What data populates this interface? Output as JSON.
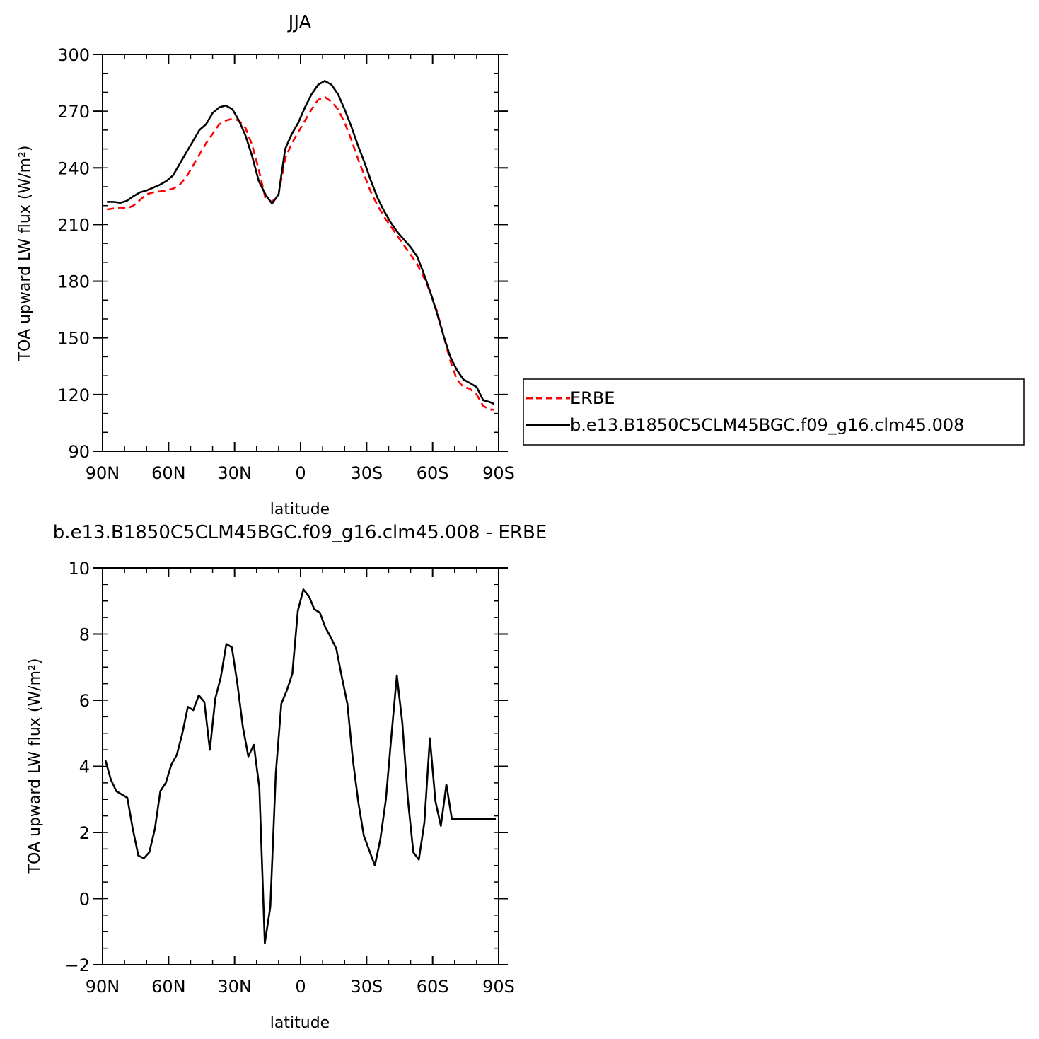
{
  "chart_data": [
    {
      "type": "line",
      "title": "JJA",
      "xlabel": "latitude",
      "ylabel": "TOA upward LW flux (W/m²)",
      "xlim": [
        -90,
        90
      ],
      "ylim": [
        90,
        300
      ],
      "x_ticks": [
        {
          "value": -90,
          "label": "90N"
        },
        {
          "value": -60,
          "label": "60N"
        },
        {
          "value": -30,
          "label": "30N"
        },
        {
          "value": 0,
          "label": "0"
        },
        {
          "value": 30,
          "label": "30S"
        },
        {
          "value": 60,
          "label": "60S"
        },
        {
          "value": 90,
          "label": "90S"
        }
      ],
      "y_ticks": [
        90,
        120,
        150,
        180,
        210,
        240,
        270,
        300
      ],
      "legend": "right",
      "series": [
        {
          "name": "ERBE",
          "color": "#ff0000",
          "dash": true,
          "x": [
            -88,
            -85,
            -82,
            -79,
            -76,
            -73,
            -70,
            -67,
            -64,
            -61,
            -58,
            -55,
            -52,
            -49,
            -46,
            -43,
            -40,
            -37,
            -34,
            -31,
            -28,
            -25,
            -22,
            -19,
            -16,
            -13,
            -10,
            -7,
            -4,
            -1,
            2,
            5,
            8,
            11,
            14,
            17,
            20,
            23,
            26,
            29,
            32,
            35,
            38,
            41,
            44,
            47,
            50,
            53,
            56,
            59,
            62,
            65,
            68,
            71,
            74,
            77,
            80,
            83,
            86,
            88
          ],
          "values": [
            218,
            218.5,
            219,
            218.5,
            220,
            223,
            226,
            227,
            227.5,
            228,
            229,
            231,
            235,
            241,
            247,
            253,
            258,
            263,
            265,
            266,
            265,
            261,
            252,
            239,
            224,
            222,
            226,
            245,
            253,
            259,
            265,
            271,
            276,
            277.5,
            275,
            271,
            264,
            255,
            245,
            236,
            227,
            220,
            214,
            209,
            204,
            199,
            194,
            189,
            182,
            174,
            164,
            151,
            138,
            128,
            124,
            123,
            120,
            114,
            112,
            112
          ],
          "x_note": ""
        },
        {
          "name": "b.e13.B1850C5CLM45BGC.f09_g16.clm45.008",
          "color": "#000000",
          "dash": false,
          "x": [
            -88,
            -85,
            -82,
            -79,
            -76,
            -73,
            -70,
            -67,
            -64,
            -61,
            -58,
            -55,
            -52,
            -49,
            -46,
            -43,
            -40,
            -37,
            -34,
            -31,
            -28,
            -25,
            -22,
            -19,
            -16,
            -13,
            -10,
            -7,
            -4,
            -1,
            2,
            5,
            8,
            11,
            14,
            17,
            20,
            23,
            26,
            29,
            32,
            35,
            38,
            41,
            44,
            47,
            50,
            53,
            56,
            59,
            62,
            65,
            68,
            71,
            74,
            77,
            80,
            83,
            86,
            88
          ],
          "values": [
            222,
            222,
            221.5,
            222.5,
            225,
            227,
            228,
            229.5,
            231,
            233,
            236,
            242,
            248,
            254,
            260,
            263,
            269,
            272,
            273,
            271,
            265,
            257,
            246,
            233,
            226,
            221,
            226,
            250,
            258,
            264,
            272,
            279,
            284,
            286,
            284,
            279,
            271,
            262,
            252,
            243,
            233,
            224,
            217,
            211,
            206,
            202,
            198,
            193,
            184,
            174,
            163,
            151,
            140,
            133,
            128,
            126,
            124,
            117,
            116,
            115
          ]
        }
      ]
    },
    {
      "type": "line",
      "title": "b.e13.B1850C5CLM45BGC.f09_g16.clm45.008 - ERBE",
      "xlabel": "latitude",
      "ylabel": "TOA upward LW flux (W/m²)",
      "xlim": [
        -90,
        90
      ],
      "ylim": [
        -2,
        10
      ],
      "x_ticks": [
        {
          "value": -90,
          "label": "90N"
        },
        {
          "value": -60,
          "label": "60N"
        },
        {
          "value": -30,
          "label": "30N"
        },
        {
          "value": 0,
          "label": "0"
        },
        {
          "value": 30,
          "label": "30S"
        },
        {
          "value": 60,
          "label": "60S"
        },
        {
          "value": 90,
          "label": "90S"
        }
      ],
      "y_ticks": [
        -2,
        0,
        2,
        4,
        6,
        8,
        10
      ],
      "series": [
        {
          "color": "#000000",
          "x": [
            -88.75,
            -86.25,
            -83.75,
            -81.25,
            -78.75,
            -76.25,
            -73.75,
            -71.25,
            -68.75,
            -66.25,
            -63.75,
            -61.25,
            -58.75,
            -56.25,
            -53.75,
            -51.25,
            -48.75,
            -46.25,
            -43.75,
            -41.25,
            -38.75,
            -36.25,
            -33.75,
            -31.25,
            -28.75,
            -26.25,
            -23.75,
            -21.25,
            -18.75,
            -16.25,
            -13.75,
            -11.25,
            -8.75,
            -6.25,
            -3.75,
            -1.25,
            1.25,
            3.75,
            6.25,
            8.75,
            11.25,
            13.75,
            16.25,
            18.75,
            21.25,
            23.75,
            26.25,
            28.75,
            31.25,
            33.75,
            36.25,
            38.75,
            41.25,
            43.75,
            46.25,
            48.75,
            51.25,
            53.75,
            56.25,
            58.75,
            61.25,
            63.75,
            66.25,
            68.75,
            71.25,
            73.75,
            76.25,
            78.75,
            81.25,
            83.75,
            86.25,
            88.75
          ],
          "values": [
            4.2,
            3.6,
            3.25,
            3.15,
            3.05,
            2.1,
            1.3,
            1.22,
            1.4,
            2.1,
            3.25,
            3.5,
            4.05,
            4.35,
            5.0,
            5.8,
            5.7,
            6.15,
            5.95,
            4.5,
            6.05,
            6.7,
            7.7,
            7.6,
            6.5,
            5.2,
            4.3,
            4.65,
            3.35,
            -1.35,
            -0.25,
            3.8,
            5.9,
            6.3,
            6.8,
            8.7,
            9.35,
            9.15,
            8.75,
            8.65,
            8.2,
            7.9,
            7.55,
            6.7,
            5.9,
            4.2,
            2.9,
            1.9,
            1.45,
            1.0,
            1.8,
            3.0,
            4.9,
            6.75,
            5.3,
            3.0,
            1.4,
            1.18,
            2.3,
            4.85,
            2.95,
            2.2,
            3.45,
            2.4,
            2.4,
            2.4,
            2.4,
            2.4,
            2.4,
            2.4,
            2.4,
            2.4
          ]
        }
      ]
    }
  ]
}
